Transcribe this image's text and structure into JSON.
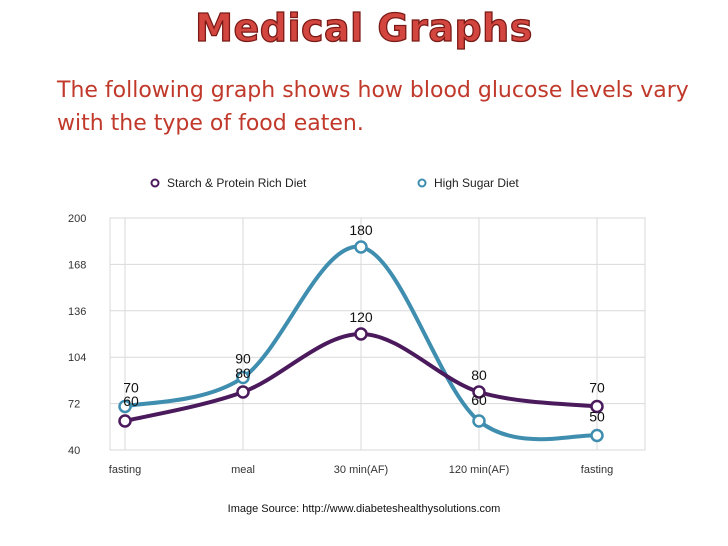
{
  "slide": {
    "title": "Medical Graphs",
    "intro": "The following graph shows how blood glucose levels vary with the type of food eaten.",
    "source": "Image Source: http://www.diabeteshealthysolutions.com"
  },
  "colors": {
    "title": "#d3463f",
    "intro_text": "#c0392b",
    "starch_series": "#4b1a5c",
    "sugar_series": "#3f8eb0",
    "grid": "#d9d9d9"
  },
  "chart_data": {
    "type": "line",
    "categories": [
      "fasting",
      "meal",
      "30 min(AF)",
      "120 min(AF)",
      "fasting"
    ],
    "yticks": [
      "200",
      "168",
      "136",
      "104",
      "72",
      "40"
    ],
    "ylim": [
      40,
      200
    ],
    "grid": true,
    "legend_position": "top",
    "series": [
      {
        "name": "Starch & Protein Rich Diet",
        "values": [
          60,
          80,
          120,
          80,
          70
        ],
        "labels": [
          "60",
          "80",
          "120",
          "80",
          "70"
        ]
      },
      {
        "name": "High Sugar Diet",
        "values": [
          70,
          90,
          180,
          60,
          50
        ],
        "labels": [
          "70",
          "90",
          "180",
          "60",
          "50"
        ]
      }
    ]
  }
}
